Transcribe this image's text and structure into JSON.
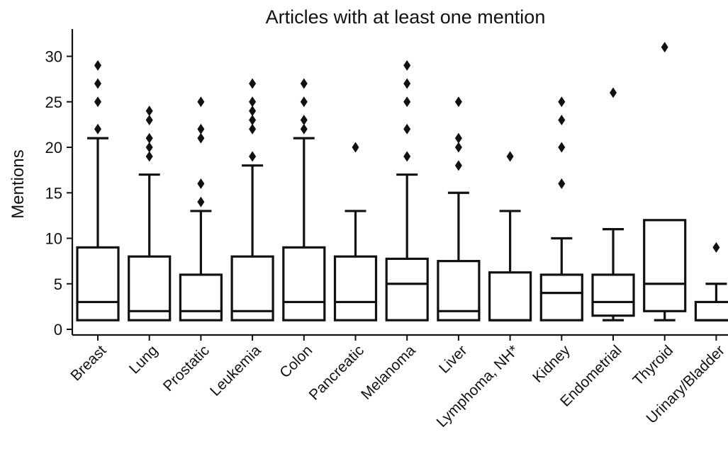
{
  "chart_data": {
    "type": "box",
    "title": "Articles with at least one mention",
    "xlabel": "",
    "ylabel": "Mentions",
    "ylim": [
      -0.5,
      33
    ],
    "yticks": [
      0,
      5,
      10,
      15,
      20,
      25,
      30
    ],
    "grid": false,
    "categories": [
      "Breast",
      "Lung",
      "Prostatic",
      "Leukemia",
      "Colon",
      "Pancreatic",
      "Melanoma",
      "Liver",
      "Lymphoma, NH*",
      "Kidney",
      "Endometrial",
      "Thyroid",
      "Urinary/Bladder"
    ],
    "boxes": [
      {
        "whisker_low": 1,
        "q1": 1,
        "median": 3,
        "q3": 9,
        "whisker_high": 21,
        "outliers": [
          22,
          25,
          27,
          29
        ]
      },
      {
        "whisker_low": 1,
        "q1": 1,
        "median": 2,
        "q3": 8,
        "whisker_high": 17,
        "outliers": [
          19,
          20,
          21,
          23,
          24
        ]
      },
      {
        "whisker_low": 1,
        "q1": 1,
        "median": 2,
        "q3": 6,
        "whisker_high": 13,
        "outliers": [
          14,
          16,
          21,
          22,
          25
        ]
      },
      {
        "whisker_low": 1,
        "q1": 1,
        "median": 2,
        "q3": 8,
        "whisker_high": 18,
        "outliers": [
          19,
          22,
          23,
          24,
          25,
          27
        ]
      },
      {
        "whisker_low": 1,
        "q1": 1,
        "median": 3,
        "q3": 9,
        "whisker_high": 21,
        "outliers": [
          22,
          23,
          25,
          27
        ]
      },
      {
        "whisker_low": 1,
        "q1": 1,
        "median": 3,
        "q3": 8,
        "whisker_high": 13,
        "outliers": [
          20
        ]
      },
      {
        "whisker_low": 1,
        "q1": 1,
        "median": 5,
        "q3": 7.75,
        "whisker_high": 17,
        "outliers": [
          19,
          22,
          25,
          27,
          29
        ]
      },
      {
        "whisker_low": 1,
        "q1": 1,
        "median": 2,
        "q3": 7.5,
        "whisker_high": 15,
        "outliers": [
          18,
          20,
          21,
          25
        ]
      },
      {
        "whisker_low": 1,
        "q1": 1,
        "median": 1,
        "q3": 6.25,
        "whisker_high": 13,
        "outliers": [
          19
        ]
      },
      {
        "whisker_low": 1,
        "q1": 1,
        "median": 4,
        "q3": 6,
        "whisker_high": 10,
        "outliers": [
          16,
          20,
          23,
          25
        ]
      },
      {
        "whisker_low": 1,
        "q1": 1.5,
        "median": 3,
        "q3": 6,
        "whisker_high": 11,
        "outliers": [
          26
        ]
      },
      {
        "whisker_low": 1,
        "q1": 2,
        "median": 5,
        "q3": 12,
        "whisker_high": 12,
        "outliers": [
          31
        ]
      },
      {
        "whisker_low": 1,
        "q1": 1,
        "median": 1,
        "q3": 3,
        "whisker_high": 5,
        "outliers": [
          9
        ]
      }
    ]
  }
}
